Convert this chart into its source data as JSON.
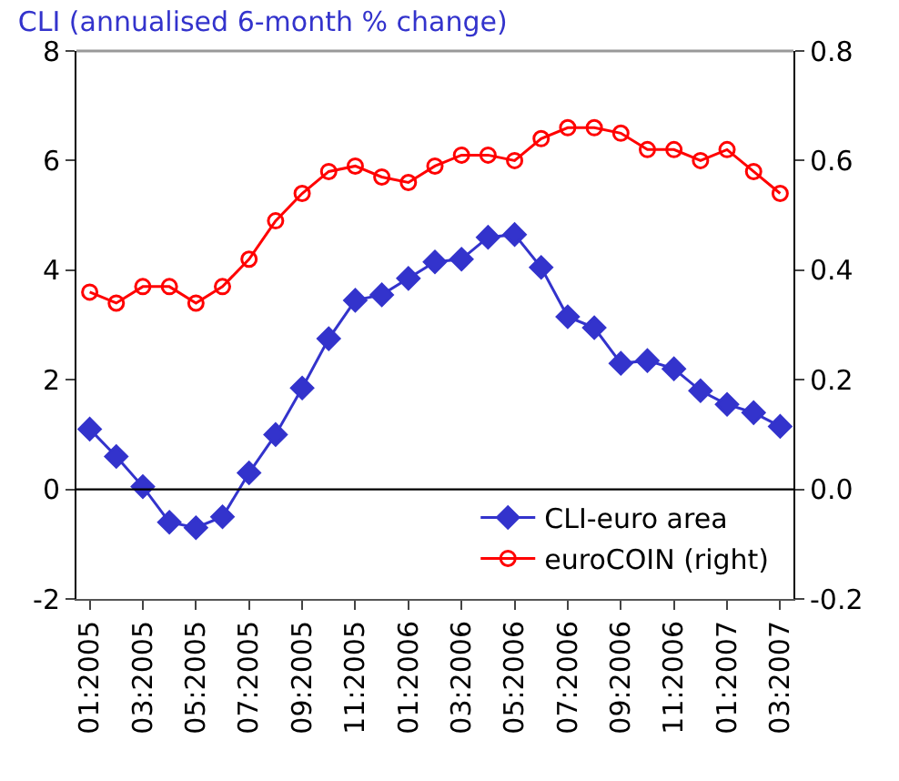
{
  "chart_data": {
    "type": "line",
    "title": "CLI (annualised 6-month % change)",
    "categories": [
      "01:2005",
      null,
      "03:2005",
      null,
      "05:2005",
      null,
      "07:2005",
      null,
      "09:2005",
      null,
      "11:2005",
      null,
      "01:2006",
      null,
      "03:2006",
      null,
      "05:2006",
      null,
      "07:2006",
      null,
      "09:2006",
      null,
      "11:2006",
      null,
      "01:2007",
      null,
      "03:2007"
    ],
    "series": [
      {
        "name": "CLI-euro area",
        "color": "#3333cc",
        "marker": "diamond",
        "values": [
          1.1,
          0.6,
          0.05,
          -0.6,
          -0.7,
          -0.5,
          0.3,
          1.0,
          1.85,
          2.75,
          3.45,
          3.55,
          3.85,
          4.15,
          4.2,
          4.6,
          4.65,
          4.05,
          3.15,
          2.95,
          2.3,
          2.35,
          2.2,
          1.8,
          1.55,
          1.4,
          1.15
        ]
      },
      {
        "name": "euroCOIN (right)",
        "color": "#ff0000",
        "marker": "circle",
        "axis": "y2",
        "values": [
          0.36,
          0.34,
          0.37,
          0.37,
          0.34,
          0.37,
          0.42,
          0.49,
          0.54,
          0.58,
          0.59,
          0.57,
          0.56,
          0.59,
          0.61,
          0.61,
          0.6,
          0.64,
          0.66,
          0.66,
          0.65,
          0.62,
          0.62,
          0.6,
          0.62,
          0.58,
          0.54
        ]
      }
    ],
    "ylim": [
      -2,
      8
    ],
    "yticks": [
      -2,
      0,
      2,
      4,
      6,
      8
    ],
    "y2lim": [
      -0.2,
      0.8
    ],
    "y2ticks": [
      {
        "value": -0.2,
        "label": "-0.2"
      },
      {
        "value": 0,
        "label": "0.0"
      },
      {
        "value": 0.2,
        "label": "0.2"
      },
      {
        "value": 0.4,
        "label": "0.4"
      },
      {
        "value": 0.6,
        "label": "0.6"
      },
      {
        "value": 0.8,
        "label": "0.8"
      }
    ],
    "ref_lines": [
      {
        "axis": "y",
        "value": 0,
        "color": "#000000"
      }
    ],
    "legend": "bottom right",
    "line_style": "solid"
  }
}
